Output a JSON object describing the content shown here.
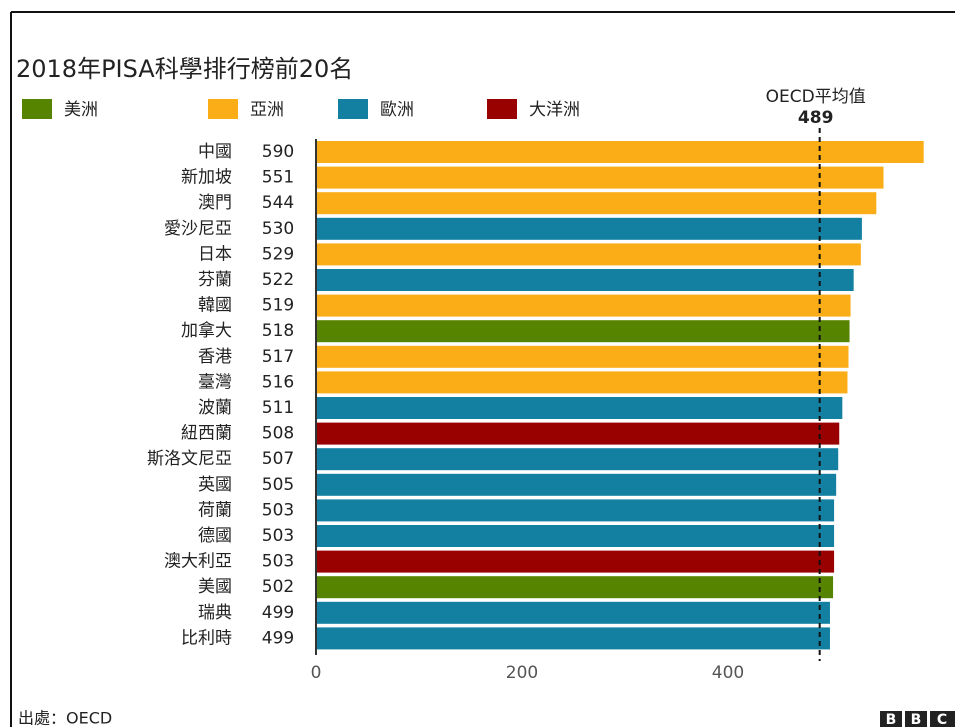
{
  "chart_data": {
    "type": "bar",
    "orientation": "horizontal",
    "title": "2018年PISA科學排行榜前20名",
    "categories": [
      "中國",
      "新加坡",
      "澳門",
      "愛沙尼亞",
      "日本",
      "芬蘭",
      "韓國",
      "加拿大",
      "香港",
      "臺灣",
      "波蘭",
      "紐西蘭",
      "斯洛文尼亞",
      "英國",
      "荷蘭",
      "德國",
      "澳大利亞",
      "美國",
      "瑞典",
      "比利時"
    ],
    "series": [
      {
        "name": "美洲",
        "color": "#568400",
        "values": [
          null,
          null,
          null,
          null,
          null,
          null,
          null,
          518,
          null,
          null,
          null,
          null,
          null,
          null,
          null,
          null,
          null,
          502,
          null,
          null
        ]
      },
      {
        "name": "亞洲",
        "color": "#fbad18",
        "values": [
          590,
          551,
          544,
          null,
          529,
          null,
          519,
          null,
          517,
          516,
          null,
          null,
          null,
          null,
          null,
          null,
          null,
          null,
          null,
          null
        ]
      },
      {
        "name": "歐洲",
        "color": "#1380a1",
        "values": [
          null,
          null,
          null,
          530,
          null,
          522,
          null,
          null,
          null,
          null,
          511,
          null,
          507,
          505,
          503,
          503,
          null,
          null,
          499,
          499
        ]
      },
      {
        "name": "大洋洲",
        "color": "#990000",
        "values": [
          null,
          null,
          null,
          null,
          null,
          null,
          null,
          null,
          null,
          null,
          null,
          508,
          null,
          null,
          null,
          null,
          503,
          null,
          null,
          null
        ]
      }
    ],
    "reference_line": {
      "label": "OECD平均值",
      "value": 489
    },
    "xlim": [
      0,
      600
    ],
    "xticks": [
      0,
      200,
      400
    ],
    "source": "出處：OECD",
    "logo": "BBC"
  }
}
